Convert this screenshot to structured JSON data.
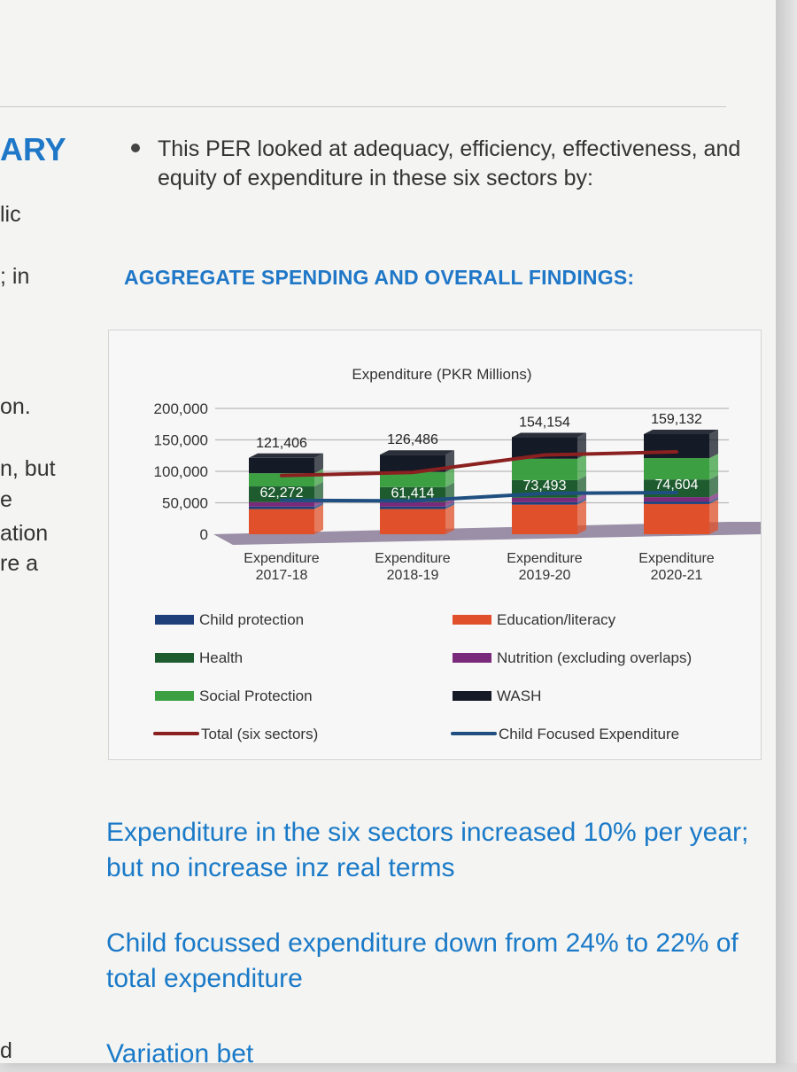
{
  "left_fragments": {
    "title": "ARY",
    "f1": "lic",
    "f2": "; in",
    "f3": "on.",
    "f4": "n, but",
    "f5": "e",
    "f6": "ation",
    "f7": "re a",
    "f8": "d"
  },
  "intro_text": "This PER looked at adequacy, efficiency, effectiveness, and equity of expenditure in these six sectors by:",
  "section_heading": "AGGREGATE SPENDING AND OVERALL FINDINGS:",
  "chart_data": {
    "type": "bar",
    "stacked": true,
    "title": "Expenditure (PKR Millions)",
    "categories": [
      "Expenditure 2017-18",
      "Expenditure 2018-19",
      "Expenditure 2019-20",
      "Expenditure 2020-21"
    ],
    "category_lines": [
      [
        "Expenditure",
        "2017-18"
      ],
      [
        "Expenditure",
        "2018-19"
      ],
      [
        "Expenditure",
        "2019-20"
      ],
      [
        "Expenditure",
        "2020-21"
      ]
    ],
    "ylim": [
      0,
      200000
    ],
    "yticks": [
      0,
      50000,
      100000,
      150000,
      200000
    ],
    "ytick_labels": [
      "0",
      "50,000",
      "100,000",
      "150,000",
      "200,000"
    ],
    "grid": true,
    "legend_position": "bottom",
    "series": [
      {
        "name": "Education/literacy",
        "color": "#e0502a",
        "values": [
          40000,
          40000,
          47000,
          48000
        ]
      },
      {
        "name": "Child protection",
        "color": "#1f3f7a",
        "values": [
          4000,
          4000,
          4000,
          4000
        ]
      },
      {
        "name": "Nutrition (excluding overlaps)",
        "color": "#7a2a7a",
        "values": [
          7000,
          7000,
          7000,
          7000
        ]
      },
      {
        "name": "Health",
        "color": "#1e5c30",
        "values": [
          25000,
          24000,
          28000,
          28000
        ]
      },
      {
        "name": "Social Protection",
        "color": "#3ca042",
        "values": [
          21000,
          24000,
          34000,
          34000
        ]
      },
      {
        "name": "WASH",
        "color": "#141a26",
        "values": [
          24406,
          27486,
          34154,
          38132
        ]
      }
    ],
    "lines": [
      {
        "name": "Total (six sectors)",
        "color": "#8b2020",
        "values": [
          121406,
          126486,
          154154,
          159132
        ],
        "labels": [
          "121,406",
          "126,486",
          "154,154",
          "159,132"
        ]
      },
      {
        "name": "Child Focused Expenditure",
        "color": "#1f4f80",
        "values": [
          62272,
          61414,
          73493,
          74604
        ],
        "labels": [
          "62,272",
          "61,414",
          "73,493",
          "74,604"
        ]
      }
    ],
    "legend": [
      {
        "name": "Child protection",
        "color": "#1f3f7a",
        "kind": "bar"
      },
      {
        "name": "Education/literacy",
        "color": "#e0502a",
        "kind": "bar"
      },
      {
        "name": "Health",
        "color": "#1e5c30",
        "kind": "bar"
      },
      {
        "name": "Nutrition (excluding overlaps)",
        "color": "#7a2a7a",
        "kind": "bar"
      },
      {
        "name": "Social Protection",
        "color": "#3ca042",
        "kind": "bar"
      },
      {
        "name": "WASH",
        "color": "#141a26",
        "kind": "bar"
      },
      {
        "name": "Total (six sectors)",
        "color": "#8b2020",
        "kind": "line"
      },
      {
        "name": "Child Focused Expenditure",
        "color": "#1f4f80",
        "kind": "line"
      }
    ]
  },
  "findings": [
    "Expenditure in the six sectors increased 10% per year; but no increase inz real terms",
    "Child focussed expenditure down from 24% to 22% of total expenditure",
    "Variation bet"
  ]
}
